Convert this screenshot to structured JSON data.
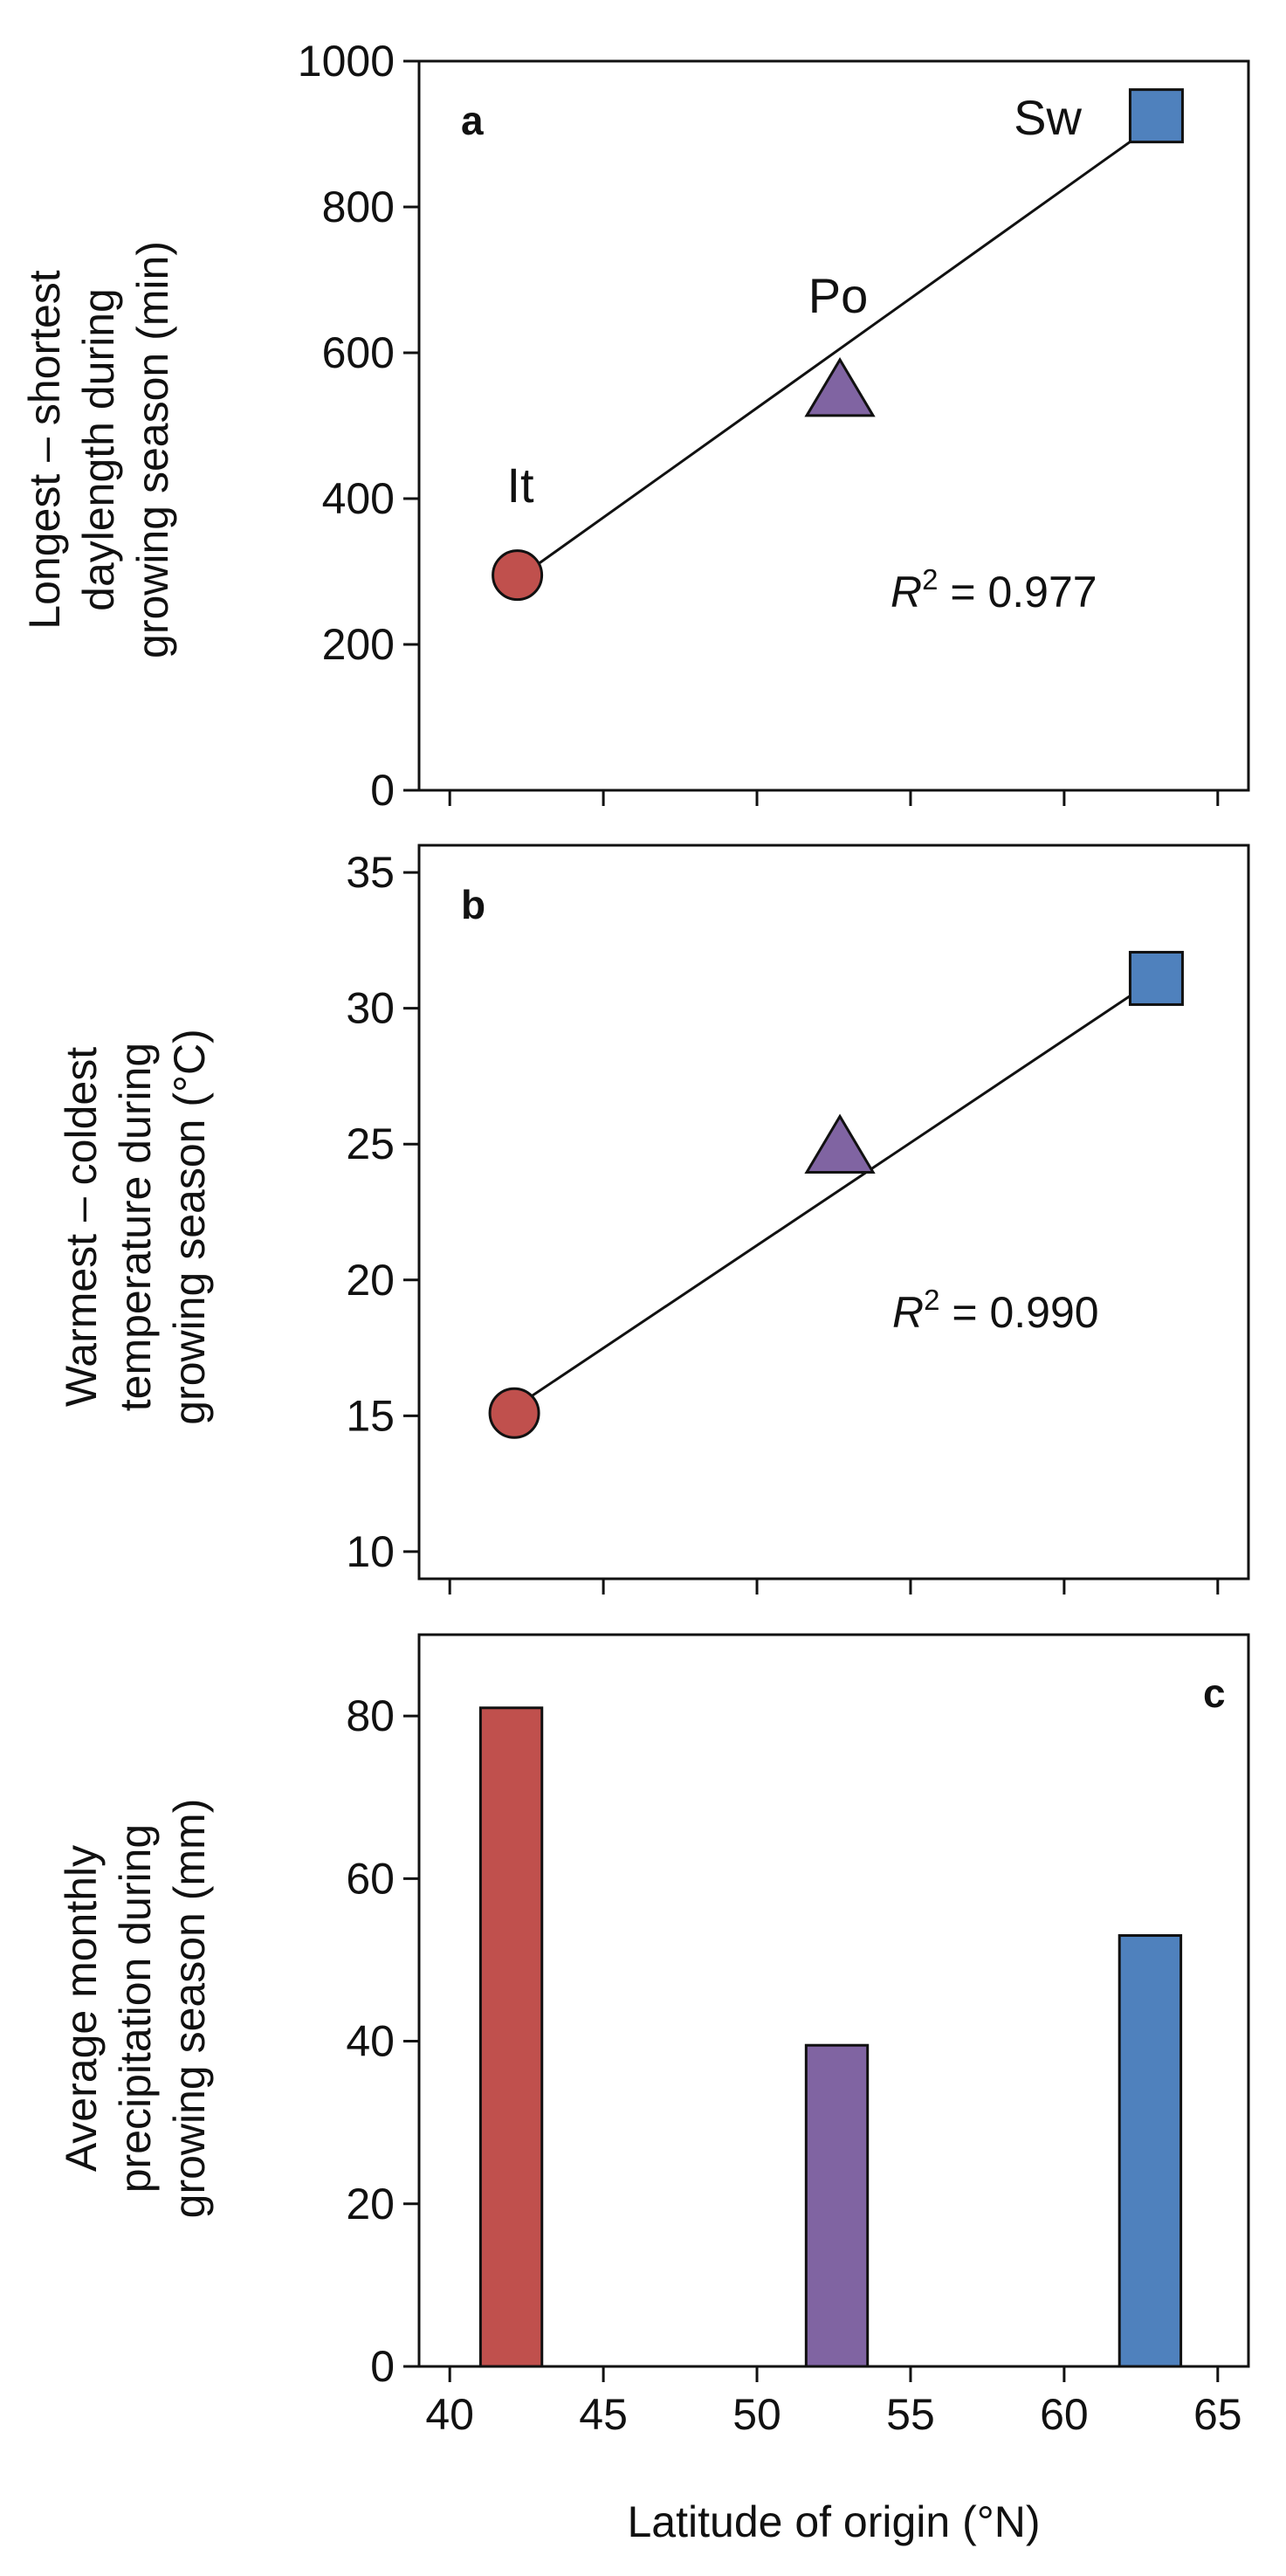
{
  "figure": {
    "x_axis_label": "Latitude of origin (°N)",
    "x_ticks": [
      "40",
      "45",
      "50",
      "55",
      "60",
      "65"
    ]
  },
  "colors": {
    "It": "#c0504d",
    "Po": "#8064a2",
    "Sw": "#4f81bd"
  },
  "chart_data": [
    {
      "panel": "a",
      "type": "scatter",
      "xlabel": "Latitude of origin (°N)",
      "ylabel_lines": [
        "Longest – shortest",
        "daylength during",
        "growing season (min)"
      ],
      "xlim": [
        39,
        66
      ],
      "ylim": [
        0,
        1000
      ],
      "yticks": [
        0,
        200,
        400,
        600,
        800,
        1000
      ],
      "ytick_labels": [
        "0",
        "200",
        "400",
        "600",
        "800",
        "1000"
      ],
      "xticks": [
        40,
        45,
        50,
        55,
        60,
        65
      ],
      "show_x_tick_labels": false,
      "series": [
        {
          "name": "It",
          "marker": "circle",
          "x": 42.2,
          "y": 295,
          "label": "It"
        },
        {
          "name": "Po",
          "marker": "triangle",
          "x": 52.7,
          "y": 545,
          "label": "Po"
        },
        {
          "name": "Sw",
          "marker": "square",
          "x": 63.0,
          "y": 925,
          "label": "Sw"
        }
      ],
      "fit_line": {
        "x": [
          42.2,
          63.0
        ],
        "y": [
          290,
          915
        ]
      },
      "r2_prefix": "R",
      "r2_sup": "2",
      "r2_value": " = 0.977"
    },
    {
      "panel": "b",
      "type": "scatter",
      "xlabel": "Latitude of origin (°N)",
      "ylabel_lines": [
        "Warmest – coldest",
        "temperature during",
        "growing season (°C)"
      ],
      "xlim": [
        39,
        66
      ],
      "ylim": [
        9,
        36
      ],
      "yticks": [
        10,
        15,
        20,
        25,
        30,
        35
      ],
      "ytick_labels": [
        "10",
        "15",
        "20",
        "25",
        "30",
        "35"
      ],
      "xticks": [
        40,
        45,
        50,
        55,
        60,
        65
      ],
      "show_x_tick_labels": false,
      "series": [
        {
          "name": "It",
          "marker": "circle",
          "x": 42.1,
          "y": 15.1,
          "label": ""
        },
        {
          "name": "Po",
          "marker": "triangle",
          "x": 52.7,
          "y": 24.8,
          "label": ""
        },
        {
          "name": "Sw",
          "marker": "square",
          "x": 63.0,
          "y": 31.1,
          "label": ""
        }
      ],
      "fit_line": {
        "x": [
          42.1,
          63.0
        ],
        "y": [
          15.3,
          31.1
        ]
      },
      "r2_prefix": "R",
      "r2_sup": "2",
      "r2_value": " = 0.990"
    },
    {
      "panel": "c",
      "type": "bar",
      "xlabel": "Latitude of origin (°N)",
      "ylabel_lines": [
        "Average monthly",
        "precipitation during",
        "growing season (mm)"
      ],
      "xlim": [
        39,
        66
      ],
      "ylim": [
        0,
        90
      ],
      "yticks": [
        0,
        20,
        40,
        60,
        80
      ],
      "ytick_labels": [
        "0",
        "20",
        "40",
        "60",
        "80"
      ],
      "xticks": [
        40,
        45,
        50,
        55,
        60,
        65
      ],
      "show_x_tick_labels": true,
      "bars": [
        {
          "name": "It",
          "x_start": 41.0,
          "x_end": 43.0,
          "value": 81
        },
        {
          "name": "Po",
          "x_start": 51.6,
          "x_end": 53.6,
          "value": 39.5
        },
        {
          "name": "Sw",
          "x_start": 61.8,
          "x_end": 63.8,
          "value": 53
        }
      ]
    }
  ]
}
